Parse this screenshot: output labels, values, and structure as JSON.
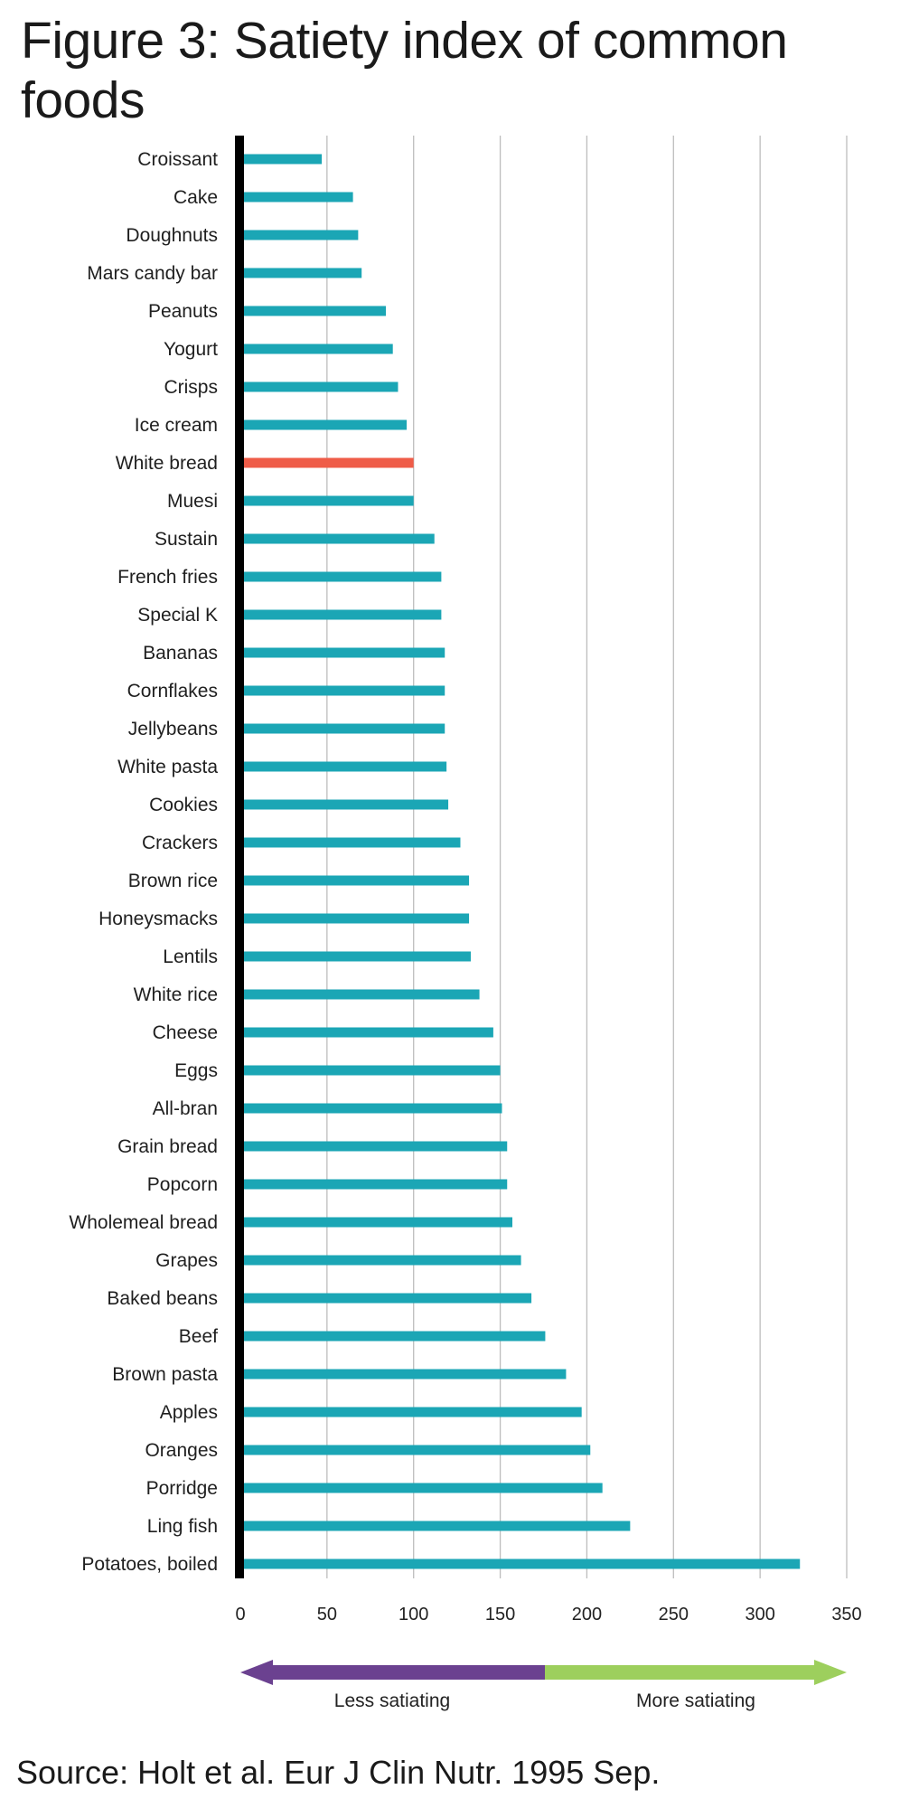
{
  "title": "Figure 3: Satiety index of common foods",
  "source": "Source: Holt et al. Eur J Clin Nutr. 1995 Sep.",
  "colors": {
    "bar": "#1ba6b5",
    "highlight": "#ef5c48",
    "less": "#6b4190",
    "more": "#9dcf5d",
    "axis": "#000000",
    "grid": "#bdbdbd"
  },
  "legend": {
    "less_label": "Less satiating",
    "more_label": "More satiating"
  },
  "chart_data": {
    "type": "bar",
    "orientation": "horizontal",
    "title": "Figure 3: Satiety index of common foods",
    "xlim": [
      0,
      350
    ],
    "xticks": [
      0,
      50,
      100,
      150,
      200,
      250,
      300,
      350
    ],
    "grid": true,
    "highlight_category": "White bread",
    "categories": [
      "Croissant",
      "Cake",
      "Doughnuts",
      "Mars candy bar",
      "Peanuts",
      "Yogurt",
      "Crisps",
      "Ice cream",
      "White bread",
      "Muesi",
      "Sustain",
      "French fries",
      "Special K",
      "Bananas",
      "Cornflakes",
      "Jellybeans",
      "White pasta",
      "Cookies",
      "Crackers",
      "Brown rice",
      "Honeysmacks",
      "Lentils",
      "White rice",
      "Cheese",
      "Eggs",
      "All-bran",
      "Grain bread",
      "Popcorn",
      "Wholemeal bread",
      "Grapes",
      "Baked beans",
      "Beef",
      "Brown pasta",
      "Apples",
      "Oranges",
      "Porridge",
      "Ling fish",
      "Potatoes, boiled"
    ],
    "values": [
      47,
      65,
      68,
      70,
      84,
      88,
      91,
      96,
      100,
      100,
      112,
      116,
      116,
      118,
      118,
      118,
      119,
      120,
      127,
      132,
      132,
      133,
      138,
      146,
      150,
      151,
      154,
      154,
      157,
      162,
      168,
      176,
      188,
      197,
      202,
      209,
      225,
      323
    ]
  }
}
